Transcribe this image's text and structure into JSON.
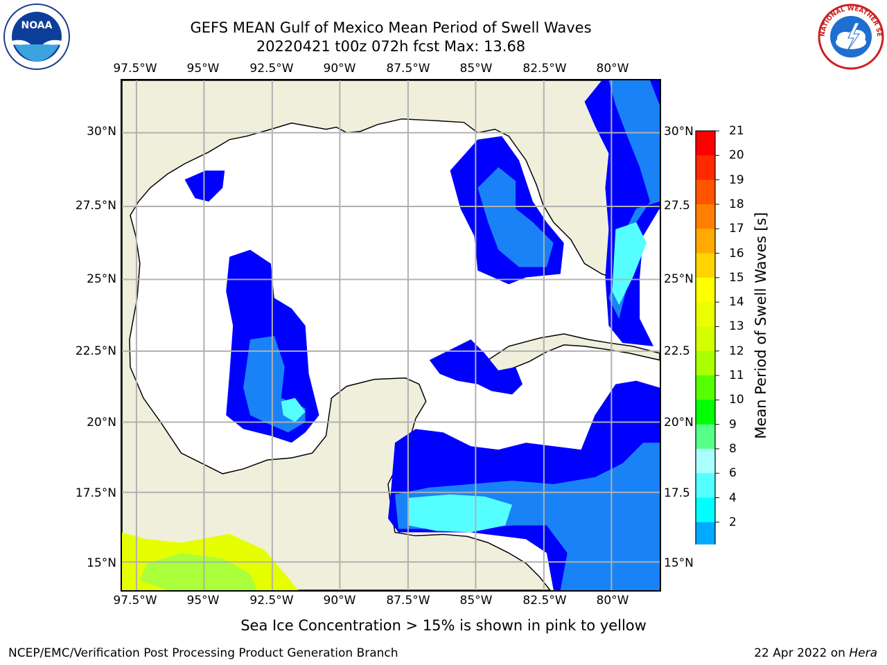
{
  "title": {
    "line1": "GEFS MEAN Gulf of Mexico Mean Period of Swell Waves",
    "line2": "20220421 t00z 072h fcst   Max: 13.68"
  },
  "logos": {
    "noaa_text": "NOAA",
    "nws_text": "NATIONAL WEATHER SERVICE"
  },
  "axes": {
    "lon_labels": [
      "97.5°W",
      "95°W",
      "92.5°W",
      "90°W",
      "87.5°W",
      "85°W",
      "82.5°W",
      "80°W"
    ],
    "lat_labels_left": [
      "30°N",
      "27.5°N",
      "25°N",
      "22.5°N",
      "20°N",
      "17.5°N",
      "15°N"
    ],
    "lat_labels_right": [
      "30°N",
      "27.5",
      "25°N",
      "22.5",
      "20°N",
      "17.5",
      "15°N"
    ]
  },
  "colorbar": {
    "title": "Mean Period of Swell Waves [s]",
    "ticks": [
      "21",
      "20",
      "19",
      "18",
      "17",
      "16",
      "15",
      "14",
      "13",
      "12",
      "11",
      "10",
      "9",
      "8",
      "6",
      "4",
      "2"
    ],
    "colors": [
      "#ff0000",
      "#ff2a00",
      "#ff5500",
      "#ff8000",
      "#ffaa00",
      "#ffd400",
      "#ffff00",
      "#eaff00",
      "#d4ff00",
      "#aaff00",
      "#55ff00",
      "#00ff00",
      "#55ff88",
      "#aaffff",
      "#55ffff",
      "#00ffff",
      "#00aaff",
      "#0080ff"
    ]
  },
  "chart_data": {
    "type": "heatmap",
    "title": "GEFS MEAN Gulf of Mexico Mean Period of Swell Waves",
    "subtitle": "20220421 t00z 072h fcst   Max: 13.68",
    "variable": "Mean Period of Swell Waves [s]",
    "max": 13.68,
    "xlim": [
      -98,
      -78.5
    ],
    "ylim": [
      14,
      32
    ],
    "levels": [
      2,
      4,
      6,
      8,
      9,
      10,
      11,
      12,
      13,
      14,
      15,
      16,
      17,
      18,
      19,
      20,
      21
    ],
    "land_color": "#efefdc",
    "ocean_color": "#ffffff",
    "grid": true
  },
  "note": "Sea Ice Concentration > 15% is shown in pink to yellow",
  "footer": {
    "left": "NCEP/EMC/Verification Post Processing Product Generation Branch",
    "right_date": "22 Apr 2022 on ",
    "right_host": "Hera"
  }
}
